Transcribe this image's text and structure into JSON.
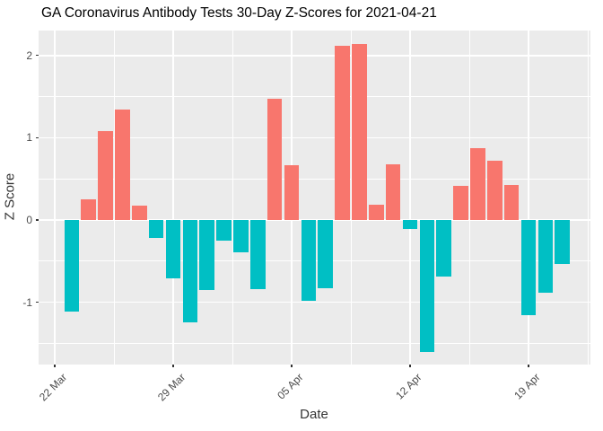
{
  "chart_data": {
    "type": "bar",
    "title": "GA Coronavirus Antibody Tests 30-Day Z-Scores for 2021-04-21",
    "xlabel": "Date",
    "ylabel": "Z Score",
    "x": [
      "2021-03-23",
      "2021-03-24",
      "2021-03-25",
      "2021-03-26",
      "2021-03-27",
      "2021-03-28",
      "2021-03-29",
      "2021-03-30",
      "2021-03-31",
      "2021-04-01",
      "2021-04-02",
      "2021-04-03",
      "2021-04-04",
      "2021-04-05",
      "2021-04-06",
      "2021-04-07",
      "2021-04-08",
      "2021-04-09",
      "2021-04-10",
      "2021-04-11",
      "2021-04-12",
      "2021-04-13",
      "2021-04-14",
      "2021-04-15",
      "2021-04-16",
      "2021-04-17",
      "2021-04-18",
      "2021-04-19",
      "2021-04-20",
      "2021-04-21"
    ],
    "values": [
      -1.11,
      0.25,
      1.08,
      1.34,
      0.18,
      -0.22,
      -0.71,
      -1.25,
      -0.85,
      -0.25,
      -0.39,
      -0.84,
      1.47,
      0.67,
      -0.98,
      -0.83,
      2.12,
      2.14,
      0.19,
      0.68,
      -0.11,
      -1.6,
      -0.69,
      0.41,
      0.87,
      0.72,
      0.43,
      -1.16,
      -0.89,
      -0.53
    ],
    "x_tick_labels": [
      "22 Mar",
      "29 Mar",
      "05 Apr",
      "12 Apr",
      "19 Apr"
    ],
    "x_tick_day_offsets": [
      0,
      7,
      14,
      21,
      28
    ],
    "x_minor_day_offsets": [
      3.5,
      10.5,
      17.5,
      24.5,
      31.5
    ],
    "y_tick_labels": [
      "-1",
      "0",
      "1",
      "2"
    ],
    "y_ticks": [
      -1,
      0,
      1,
      2
    ],
    "y_minor_ticks": [
      -1.5,
      -0.5,
      0.5,
      1.5
    ],
    "ylim": [
      -1.75,
      2.31
    ],
    "grid": true,
    "legend": false,
    "colors": {
      "positive_bar": "#F8766D",
      "negative_bar": "#00BFC4",
      "panel_background": "#EBEBEB",
      "gridline": "#FFFFFF",
      "tick_text": "#4D4D4D",
      "axis_title_text": "#333333",
      "title_text": "#000000",
      "tick_mark": "#333333"
    }
  }
}
